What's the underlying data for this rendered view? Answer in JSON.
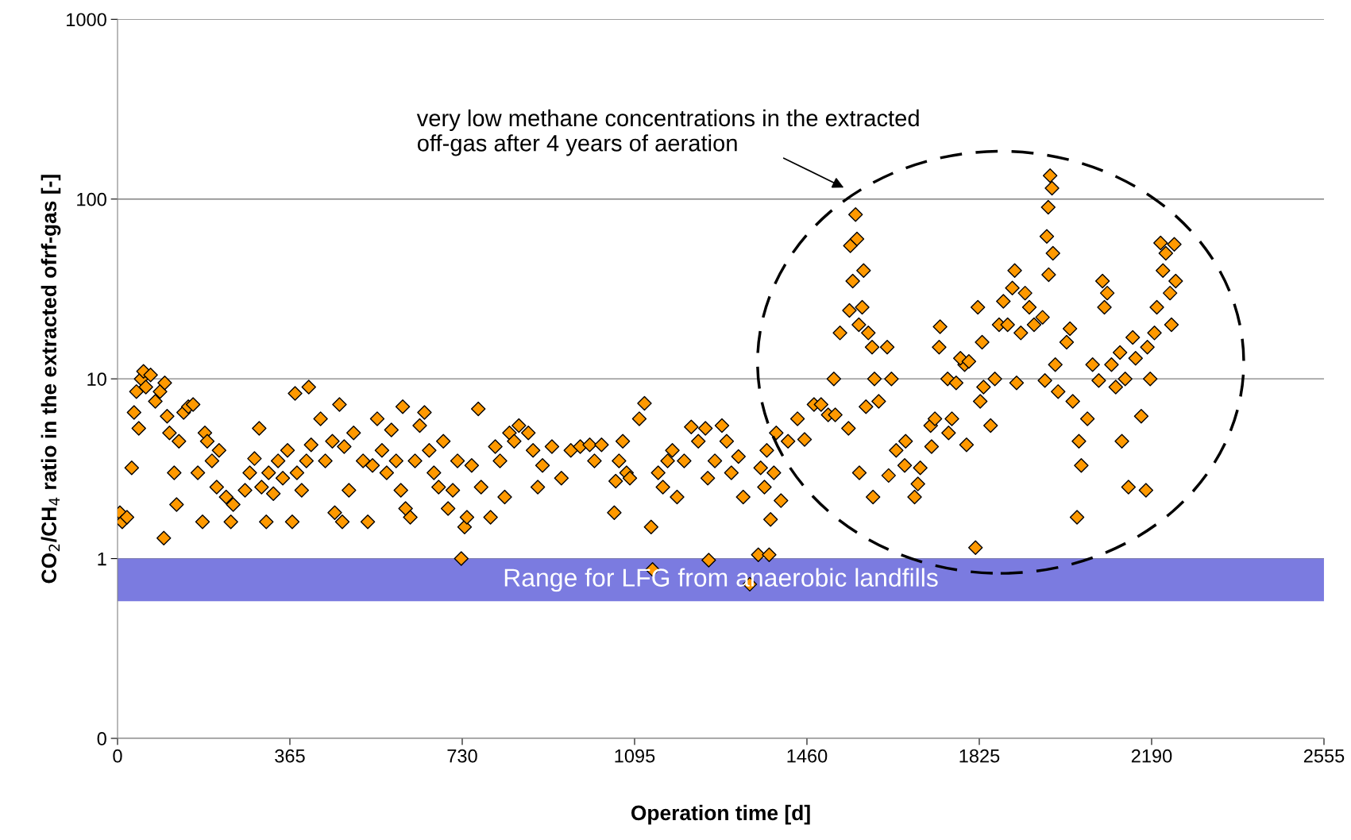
{
  "chart_data": {
    "type": "scatter",
    "xlabel": "Operation time [d]",
    "ylabel": "CO$_{2}$/CH$_{4}$ ratio in the extracted ofrf-gas [-]",
    "log": "y",
    "grid": "y",
    "marker": "diamond",
    "xlim": [
      0,
      2555
    ],
    "xticks": [
      0,
      365,
      730,
      1095,
      1460,
      1825,
      2190,
      2555
    ],
    "ylim": [
      0.1,
      1000
    ],
    "yticks": [
      {
        "value": 0.1,
        "label": "0"
      },
      1,
      10,
      100,
      1000
    ],
    "bands": [
      {
        "axis": "y",
        "from": 0.58,
        "to": 1,
        "label": "Range for LFG from anaerobic landfills",
        "color": "#7b7be0"
      }
    ],
    "annotations": [
      "very low methane concentrations in the extracted\noff-gas after 4 years of aeration"
    ],
    "series": [
      {
        "color": "#ff9900",
        "x": [
          5,
          10,
          20,
          30,
          35,
          40,
          45,
          50,
          55,
          60,
          70,
          80,
          90,
          98,
          100,
          105,
          110,
          120,
          125,
          130,
          140,
          150,
          160,
          170,
          180,
          185,
          190,
          200,
          210,
          215,
          230,
          240,
          245,
          270,
          280,
          290,
          300,
          305,
          315,
          320,
          330,
          340,
          350,
          360,
          370,
          376,
          380,
          390,
          400,
          405,
          410,
          430,
          440,
          455,
          460,
          470,
          476,
          480,
          490,
          500,
          520,
          530,
          540,
          550,
          560,
          570,
          580,
          590,
          600,
          604,
          610,
          620,
          630,
          640,
          650,
          660,
          670,
          680,
          690,
          700,
          710,
          720,
          728,
          735,
          740,
          750,
          764,
          770,
          790,
          800,
          810,
          820,
          830,
          840,
          850,
          870,
          880,
          890,
          900,
          920,
          940,
          960,
          980,
          1000,
          1010,
          1025,
          1052,
          1055,
          1062,
          1070,
          1078,
          1085,
          1105,
          1116,
          1130,
          1133,
          1145,
          1155,
          1165,
          1175,
          1185,
          1200,
          1215,
          1230,
          1245,
          1250,
          1252,
          1265,
          1280,
          1290,
          1300,
          1315,
          1325,
          1339,
          1357,
          1362,
          1370,
          1375,
          1380,
          1383,
          1390,
          1395,
          1405,
          1420,
          1440,
          1455,
          1475,
          1490,
          1505,
          1520,
          1517,
          1530,
          1548,
          1550,
          1552,
          1557,
          1563,
          1566,
          1570,
          1571,
          1580,
          1577,
          1585,
          1590,
          1598,
          1603,
          1612,
          1600,
          1630,
          1639,
          1633,
          1649,
          1667,
          1669,
          1688,
          1695,
          1700,
          1722,
          1724,
          1731,
          1740,
          1742,
          1758,
          1760,
          1767,
          1776,
          1794,
          1785,
          1798,
          1803,
          1817,
          1822,
          1831,
          1834,
          1849,
          1827,
          1858,
          1867,
          1876,
          1885,
          1895,
          1900,
          1904,
          1913,
          1922,
          1931,
          1941,
          1959,
          1964,
          1968,
          1971,
          1975,
          1979,
          1981,
          1972,
          1986,
          1992,
          2010,
          2017,
          2023,
          2032,
          2036,
          2041,
          2054,
          2065,
          2078,
          2086,
          2090,
          2096,
          2105,
          2114,
          2123,
          2127,
          2134,
          2141,
          2150,
          2156,
          2168,
          2178,
          2181,
          2187,
          2196,
          2201,
          2209,
          2214,
          2220,
          2229,
          2232,
          2238,
          2241
        ],
        "values": [
          1.8,
          1.6,
          1.7,
          3.2,
          6.5,
          8.5,
          5.3,
          10,
          11,
          9,
          10.5,
          7.5,
          8.5,
          1.3,
          9.5,
          6.2,
          5,
          3,
          2,
          4.5,
          6.5,
          7,
          7.2,
          3,
          1.6,
          5,
          4.5,
          3.5,
          2.5,
          4,
          2.2,
          1.6,
          2,
          2.4,
          3,
          3.6,
          5.3,
          2.5,
          1.6,
          3,
          2.3,
          3.5,
          2.8,
          4,
          1.6,
          8.3,
          3,
          2.4,
          3.5,
          9,
          4.3,
          6,
          3.5,
          4.5,
          1.8,
          7.2,
          1.6,
          4.2,
          2.4,
          5,
          3.5,
          1.6,
          3.3,
          6,
          4,
          3,
          5.2,
          3.5,
          2.4,
          7,
          1.9,
          1.7,
          3.5,
          5.5,
          6.5,
          4,
          3,
          2.5,
          4.5,
          1.9,
          2.4,
          3.5,
          1.0,
          1.5,
          1.7,
          3.3,
          6.8,
          2.5,
          1.7,
          4.2,
          3.5,
          2.2,
          5,
          4.5,
          5.5,
          5,
          4,
          2.5,
          3.3,
          4.2,
          2.8,
          4,
          4.2,
          4.3,
          3.5,
          4.3,
          1.8,
          2.7,
          3.5,
          4.5,
          3,
          2.8,
          6,
          7.3,
          1.5,
          0.87,
          3,
          2.5,
          3.5,
          4,
          2.2,
          3.5,
          5.4,
          4.5,
          5.3,
          2.8,
          0.98,
          3.5,
          5.5,
          4.5,
          3,
          3.7,
          2.2,
          0.72,
          1.05,
          3.2,
          2.5,
          4,
          1.05,
          1.65,
          3,
          5,
          2.1,
          4.5,
          6,
          4.6,
          7.2,
          7.2,
          6.3,
          6.3,
          10,
          18,
          5.3,
          24,
          55,
          35,
          82,
          60,
          20,
          3,
          40,
          25,
          7,
          18,
          15,
          10,
          7.5,
          2.2,
          15,
          10,
          2.9,
          4,
          3.3,
          4.5,
          2.2,
          2.6,
          3.2,
          5.5,
          4.2,
          6,
          15,
          19.5,
          10,
          5,
          6,
          9.5,
          12,
          13,
          4.3,
          12.5,
          1.15,
          25,
          16,
          9,
          5.5,
          7.5,
          10,
          20,
          27,
          20,
          32,
          40,
          9.5,
          18,
          30,
          25,
          20,
          22,
          9.8,
          62,
          90,
          135,
          115,
          50,
          38,
          12,
          8.5,
          16,
          19,
          7.5,
          1.7,
          4.5,
          3.3,
          6,
          12,
          9.8,
          35,
          25,
          30,
          12,
          9,
          14,
          4.5,
          10,
          2.5,
          17,
          13,
          6.2,
          2.4,
          15,
          10,
          18,
          25,
          57,
          40,
          50,
          30,
          20,
          56,
          35
        ]
      }
    ]
  }
}
